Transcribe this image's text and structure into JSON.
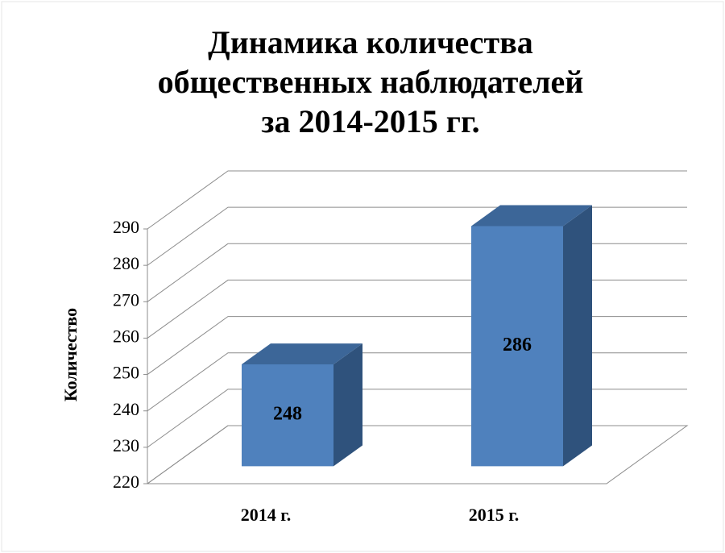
{
  "chart_data": {
    "type": "bar3d",
    "title": [
      "Динамика количества",
      "общественных наблюдателей",
      "за 2014-2015 гг."
    ],
    "y_label": "Количество",
    "categories": [
      "2014 г.",
      "2015 г."
    ],
    "values": [
      248,
      286
    ],
    "color": "#4f81bd",
    "ylim": [
      220,
      290
    ],
    "yticks": [
      220,
      230,
      240,
      250,
      260,
      270,
      280,
      290
    ],
    "grid": true
  }
}
